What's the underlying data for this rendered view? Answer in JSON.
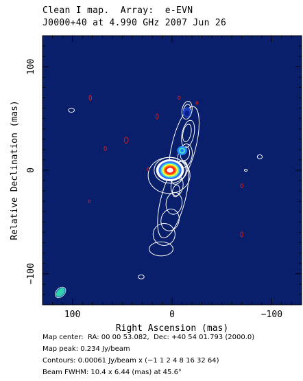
{
  "chart_data": {
    "type": "contour map",
    "title_line1": "Clean I map.  Array:  e-EVN",
    "title_line2": "J0000+40 at 4.990 GHz 2007 Jun 26",
    "xlabel": "Right Ascension  (mas)",
    "ylabel": "Relative Declination  (mas)",
    "xlim": [
      130,
      -130
    ],
    "ylim": [
      -130,
      130
    ],
    "xticks": [
      100,
      0,
      -100
    ],
    "xtick_labels": [
      "100",
      "0",
      "−100"
    ],
    "yticks": [
      100,
      0,
      -100
    ],
    "ytick_labels": [
      "100",
      "0",
      "−100"
    ],
    "background_color": "#0a1f6b",
    "positive_contour_color": "#ffffff",
    "negative_contour_color": "#cc2020",
    "contour_levels_jy_per_beam": [
      -0.00061,
      0.00061,
      0.00122,
      0.00244,
      0.00488,
      0.00976,
      0.01952,
      0.03904
    ],
    "beam": {
      "major_mas": 10.4,
      "minor_mas": 6.44,
      "pa_deg": 45.6
    }
  },
  "info": {
    "map_center": "Map center:  RA: 00 00 53.082,  Dec: +40 54 01.793 (2000.0)",
    "map_peak": "Map peak: 0.234 Jy/beam",
    "contours": "Contours: 0.00061 Jy/beam x (−1 1 2 4 8 16 32 64)",
    "beam_fwhm": "Beam FWHM: 10.4 x 6.44 (mas) at 45.6°"
  }
}
